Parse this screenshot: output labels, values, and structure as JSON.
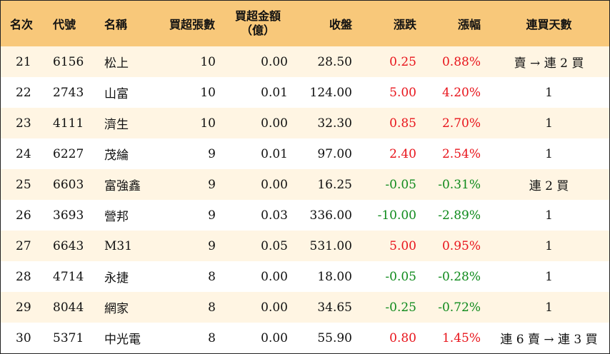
{
  "colors": {
    "header_bg": "#f8c87a",
    "row_odd_bg": "#fff5e3",
    "row_even_bg": "#ffffff",
    "up": "#e8141b",
    "down": "#0f8a1c"
  },
  "header": {
    "rank": "名次",
    "code": "代號",
    "name": "名稱",
    "net_lots": "買超張數",
    "net_amount_line1": "買超金額",
    "net_amount_line2": "（億）",
    "close": "收盤",
    "change": "漲跌",
    "change_pct": "漲幅",
    "consecutive": "連買天數"
  },
  "rows": [
    {
      "rank": "21",
      "code": "6156",
      "name": "松上",
      "net_lots": "10",
      "net_amount": "0.00",
      "close": "28.50",
      "change": "0.25",
      "change_pct": "0.88%",
      "direction": "up",
      "consecutive": "賣 → 連 2 買"
    },
    {
      "rank": "22",
      "code": "2743",
      "name": "山富",
      "net_lots": "10",
      "net_amount": "0.01",
      "close": "124.00",
      "change": "5.00",
      "change_pct": "4.20%",
      "direction": "up",
      "consecutive": "1"
    },
    {
      "rank": "23",
      "code": "4111",
      "name": "濟生",
      "net_lots": "10",
      "net_amount": "0.00",
      "close": "32.30",
      "change": "0.85",
      "change_pct": "2.70%",
      "direction": "up",
      "consecutive": "1"
    },
    {
      "rank": "24",
      "code": "6227",
      "name": "茂綸",
      "net_lots": "9",
      "net_amount": "0.01",
      "close": "97.00",
      "change": "2.40",
      "change_pct": "2.54%",
      "direction": "up",
      "consecutive": "1"
    },
    {
      "rank": "25",
      "code": "6603",
      "name": "富強鑫",
      "net_lots": "9",
      "net_amount": "0.00",
      "close": "16.25",
      "change": "-0.05",
      "change_pct": "-0.31%",
      "direction": "down",
      "consecutive": "連 2 買"
    },
    {
      "rank": "26",
      "code": "3693",
      "name": "營邦",
      "net_lots": "9",
      "net_amount": "0.03",
      "close": "336.00",
      "change": "-10.00",
      "change_pct": "-2.89%",
      "direction": "down",
      "consecutive": "1"
    },
    {
      "rank": "27",
      "code": "6643",
      "name": "M31",
      "net_lots": "9",
      "net_amount": "0.05",
      "close": "531.00",
      "change": "5.00",
      "change_pct": "0.95%",
      "direction": "up",
      "consecutive": "1"
    },
    {
      "rank": "28",
      "code": "4714",
      "name": "永捷",
      "net_lots": "8",
      "net_amount": "0.00",
      "close": "18.00",
      "change": "-0.05",
      "change_pct": "-0.28%",
      "direction": "down",
      "consecutive": "1"
    },
    {
      "rank": "29",
      "code": "8044",
      "name": "網家",
      "net_lots": "8",
      "net_amount": "0.00",
      "close": "34.65",
      "change": "-0.25",
      "change_pct": "-0.72%",
      "direction": "down",
      "consecutive": "1"
    },
    {
      "rank": "30",
      "code": "5371",
      "name": "中光電",
      "net_lots": "8",
      "net_amount": "0.00",
      "close": "55.90",
      "change": "0.80",
      "change_pct": "1.45%",
      "direction": "up",
      "consecutive": "連 6 賣 → 連 3 買"
    }
  ]
}
